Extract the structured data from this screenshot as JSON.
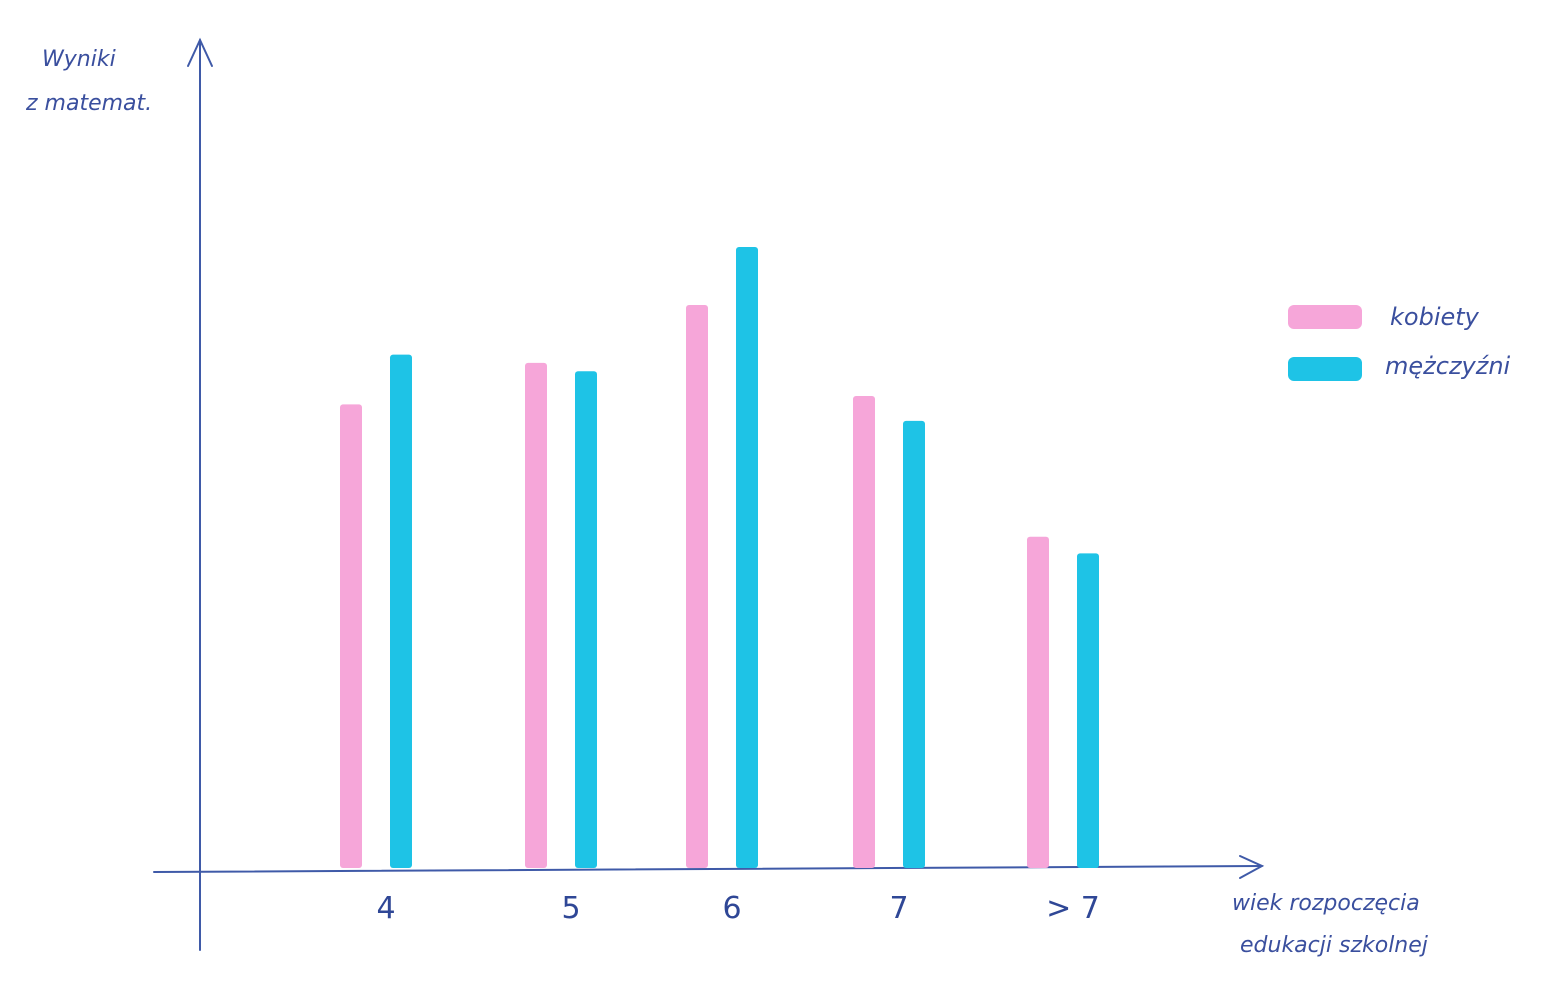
{
  "chart_data": {
    "type": "bar",
    "ylabel_lines": [
      "Wyniki",
      "z matemat."
    ],
    "xlabel_lines": [
      "wiek rozpoczęcia",
      "edukacji szkolnej"
    ],
    "categories": [
      "4",
      "5",
      "6",
      "7",
      "> 7"
    ],
    "series": [
      {
        "name": "kobiety",
        "color": "#f6a6d9",
        "values": [
          56,
          61,
          68,
          57,
          40
        ]
      },
      {
        "name": "mężczyźni",
        "color": "#1ec3e6",
        "values": [
          62,
          60,
          75,
          54,
          38
        ]
      }
    ],
    "ylim": [
      0,
      100
    ],
    "grid": false,
    "legend": "right"
  }
}
